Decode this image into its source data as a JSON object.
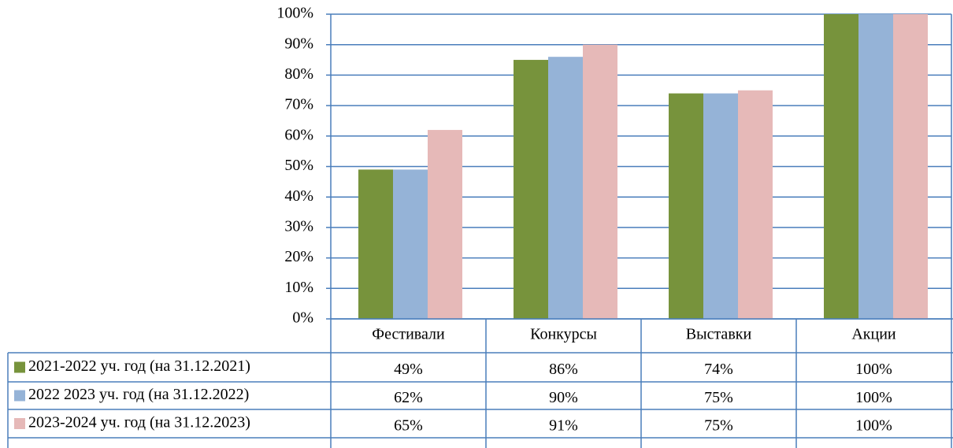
{
  "chart_data": {
    "type": "bar",
    "categories": [
      "Фестивали",
      "Конкурсы",
      "Выставки",
      "Акции"
    ],
    "series": [
      {
        "name": "2021-2022 уч. год (на 31.12.2021)",
        "color": "#77933c",
        "values": [
          49,
          85,
          74,
          100
        ]
      },
      {
        "name": "2022 2023 уч. год (на 31.12.2022)",
        "color": "#95b3d7",
        "values": [
          49,
          86,
          74,
          100
        ]
      },
      {
        "name": "2023-2024 уч. год (на 31.12.2023)",
        "color": "#e6b9b8",
        "values": [
          62,
          90,
          75,
          100
        ]
      }
    ],
    "ylim": [
      0,
      100
    ],
    "yticks": [
      {
        "value": 0,
        "label": "0%"
      },
      {
        "value": 10,
        "label": "10%"
      },
      {
        "value": 20,
        "label": "20%"
      },
      {
        "value": 30,
        "label": "30%"
      },
      {
        "value": 40,
        "label": "40%"
      },
      {
        "value": 50,
        "label": "50%"
      },
      {
        "value": 60,
        "label": "60%"
      },
      {
        "value": 70,
        "label": "70%"
      },
      {
        "value": 80,
        "label": "80%"
      },
      {
        "value": 90,
        "label": "90%"
      },
      {
        "value": 100,
        "label": "100%"
      }
    ],
    "grid": true
  },
  "table": {
    "rows": [
      [
        "49%",
        "86%",
        "74%",
        "100%"
      ],
      [
        "62%",
        "90%",
        "75%",
        "100%"
      ],
      [
        "65%",
        "91%",
        "75%",
        "100%"
      ]
    ]
  }
}
